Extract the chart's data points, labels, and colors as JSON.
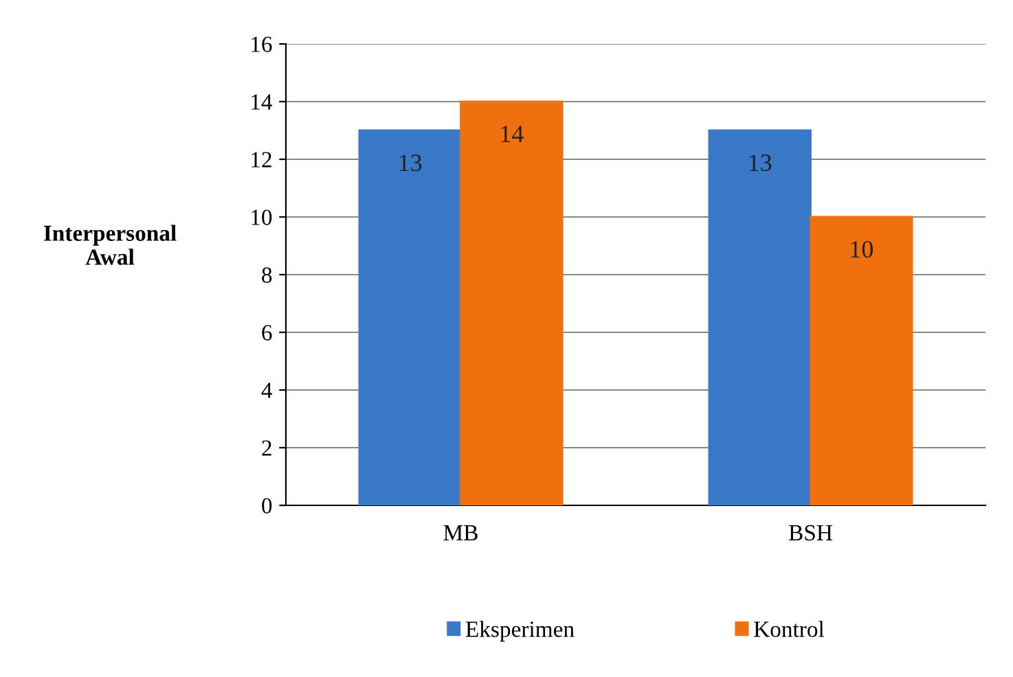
{
  "chart_data": {
    "type": "bar",
    "ylabel": "Interpersonal\nAwal",
    "categories": [
      "MB",
      "BSH"
    ],
    "series": [
      {
        "name": "Eksperimen",
        "color": "#3a78c8",
        "values": [
          13,
          13
        ]
      },
      {
        "name": "Kontrol",
        "color": "#f07010",
        "values": [
          14,
          10
        ]
      }
    ],
    "ylim": [
      0,
      16
    ],
    "yticks": [
      0,
      2,
      4,
      6,
      8,
      10,
      12,
      14,
      16
    ],
    "grid": "y",
    "legend": "bottom",
    "data_labels": true
  }
}
